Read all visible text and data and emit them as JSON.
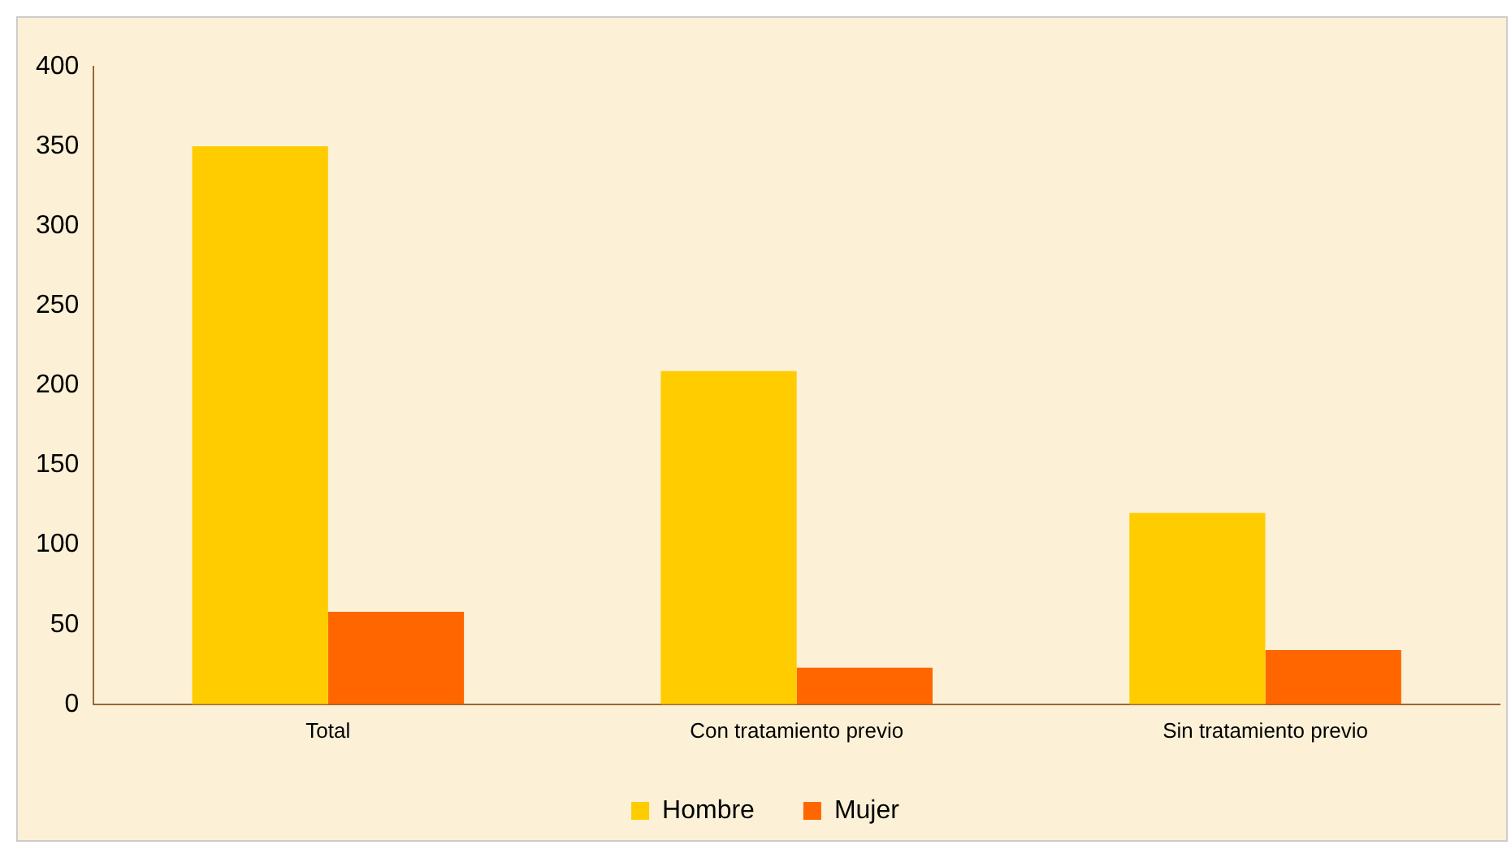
{
  "chart_data": {
    "type": "bar",
    "categories": [
      "Total",
      "Con tratamiento previo",
      "Sin tratamiento previo"
    ],
    "series": [
      {
        "name": "Hombre",
        "color": "#ffcc00",
        "values": [
          350,
          209,
          120
        ]
      },
      {
        "name": "Mujer",
        "color": "#ff6600",
        "values": [
          58,
          23,
          34
        ]
      }
    ],
    "ylim": [
      0,
      400
    ],
    "yticks": [
      0,
      50,
      100,
      150,
      200,
      250,
      300,
      350,
      400
    ],
    "grid": false,
    "legend": "bottom"
  }
}
